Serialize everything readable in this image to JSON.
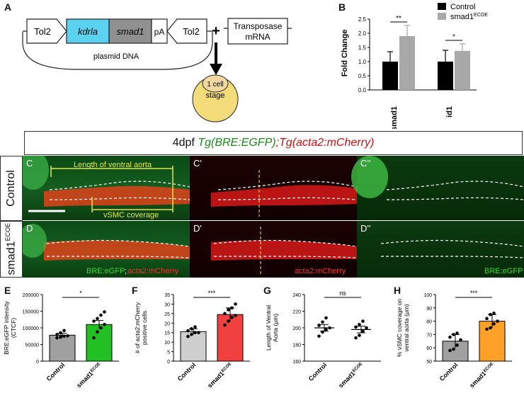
{
  "panel_a": {
    "label": "A",
    "tol2_left": "Tol2",
    "kdrla": "kdrla",
    "smad1": "smad1",
    "pa": "pA",
    "tol2_right": "Tol2",
    "plus": "+",
    "transposase_line1": "Transposase",
    "transposase_line2": "mRNA",
    "plasmid": "plasmid DNA",
    "cell_line1": "1 cell",
    "cell_line2": "stage",
    "colors": {
      "kdrla": "#5bd3f0",
      "smad1": "#909090",
      "yolk": "#f5dc7a",
      "cell": "#f2d8a0"
    }
  },
  "panel_b": {
    "label": "B",
    "legend_control": "Control",
    "legend_smad1": "smad1",
    "legend_smad1_sup": "ECOE",
    "sig1": "**",
    "sig2": "*"
  },
  "header": {
    "prefix": "4dpf ",
    "tg1": "Tg(BRE:EGFP)",
    "sep": ";",
    "tg2": "Tg(acta2:mCherry)"
  },
  "rows": {
    "control": "Control",
    "smad1": "smad1",
    "smad1_sup": "ECOE"
  },
  "micrographs": {
    "c": "C",
    "c1": "C'",
    "c2": "C''",
    "d": "D",
    "d1": "D'",
    "d2": "D''",
    "length_label": "Length of ventral aorta",
    "vsmc_label": "vSMC coverage",
    "d_green": "BRE:eGFP",
    "d_semicolon": ";",
    "d_red": "acta2:mCherry",
    "d1_label": "acta2:mCherry",
    "d2_label": "BRE:eGFP"
  },
  "chart_data": [
    {
      "type": "bar",
      "panel": "B",
      "categories": [
        "smad1",
        "id1"
      ],
      "series": [
        {
          "name": "Control",
          "values": [
            1.0,
            1.0
          ],
          "errors": [
            0.35,
            0.4
          ],
          "color": "#000000"
        },
        {
          "name": "smad1ECOE",
          "values": [
            1.9,
            1.38
          ],
          "errors": [
            0.38,
            0.25
          ],
          "color": "#a8a8a8"
        }
      ],
      "ylabel": "Fold Change",
      "ylim": [
        0,
        2.5
      ],
      "yticks": [
        "0.0",
        "0.5",
        "1.0",
        "1.5",
        "2.0",
        "2.5"
      ],
      "annotations": [
        "**",
        "*"
      ]
    },
    {
      "type": "bar",
      "panel": "E",
      "categories": [
        "Control",
        "smad1ECOE"
      ],
      "values": [
        78000,
        110000
      ],
      "errors": [
        6000,
        12000
      ],
      "colors": [
        "#a0a0a0",
        "#22c022"
      ],
      "points": [
        [
          70000,
          72000,
          75000,
          76000,
          80000,
          85000,
          92000
        ],
        [
          70000,
          88000,
          100000,
          110000,
          120000,
          128000,
          138000,
          148000
        ]
      ],
      "ylabel": "BRE:eGFP intensity (CTCF)",
      "ylim": [
        0,
        200000
      ],
      "yticks": [
        "0",
        "50000",
        "100000",
        "150000",
        "200000"
      ],
      "significance": "*"
    },
    {
      "type": "bar",
      "panel": "F",
      "categories": [
        "Control",
        "smad1ECOE"
      ],
      "values": [
        15.5,
        24.5
      ],
      "errors": [
        1.5,
        3.5
      ],
      "colors": [
        "#cfcfcf",
        "#f04040"
      ],
      "points": [
        [
          13,
          14,
          15,
          15,
          16,
          17,
          18
        ],
        [
          19,
          21,
          23,
          24,
          25,
          27,
          28,
          30
        ]
      ],
      "ylabel": "# of acta2:mCherry positive cells",
      "ylim": [
        0,
        35
      ],
      "yticks": [
        "0",
        "5",
        "10",
        "15",
        "20",
        "25",
        "30",
        "35"
      ],
      "significance": "***"
    },
    {
      "type": "scatter",
      "panel": "G",
      "categories": [
        "Control",
        "smad1ECOE"
      ],
      "means": [
        200,
        198
      ],
      "errors": [
        4,
        4
      ],
      "points": [
        [
          190,
          195,
          198,
          200,
          203,
          207,
          212
        ],
        [
          188,
          191,
          196,
          200,
          201,
          204,
          208
        ]
      ],
      "ylabel": "Length of Ventral Aorta (μm)",
      "ylim": [
        160,
        240
      ],
      "yticks": [
        "160",
        "180",
        "200",
        "220",
        "240"
      ],
      "significance": "ns"
    },
    {
      "type": "bar",
      "panel": "H",
      "categories": [
        "Control",
        "smad1ECOE"
      ],
      "values": [
        65,
        80
      ],
      "errors": [
        5,
        5
      ],
      "colors": [
        "#a0a0a0",
        "#ffa028"
      ],
      "points": [
        [
          58,
          59,
          62,
          66,
          68,
          70,
          71
        ],
        [
          74,
          75,
          78,
          80,
          82,
          85,
          86
        ]
      ],
      "ylabel": "% vSMC coverage on ventral aorta (μm)",
      "ylim": [
        50,
        100
      ],
      "yticks": [
        "50",
        "60",
        "70",
        "80",
        "90",
        "100"
      ],
      "significance": "***"
    }
  ],
  "panel_labels": {
    "e": "E",
    "f": "F",
    "g": "G",
    "h": "H"
  },
  "bottom_xticks": {
    "control": "Control",
    "smad1": "smad1",
    "sup": "ECOE"
  }
}
